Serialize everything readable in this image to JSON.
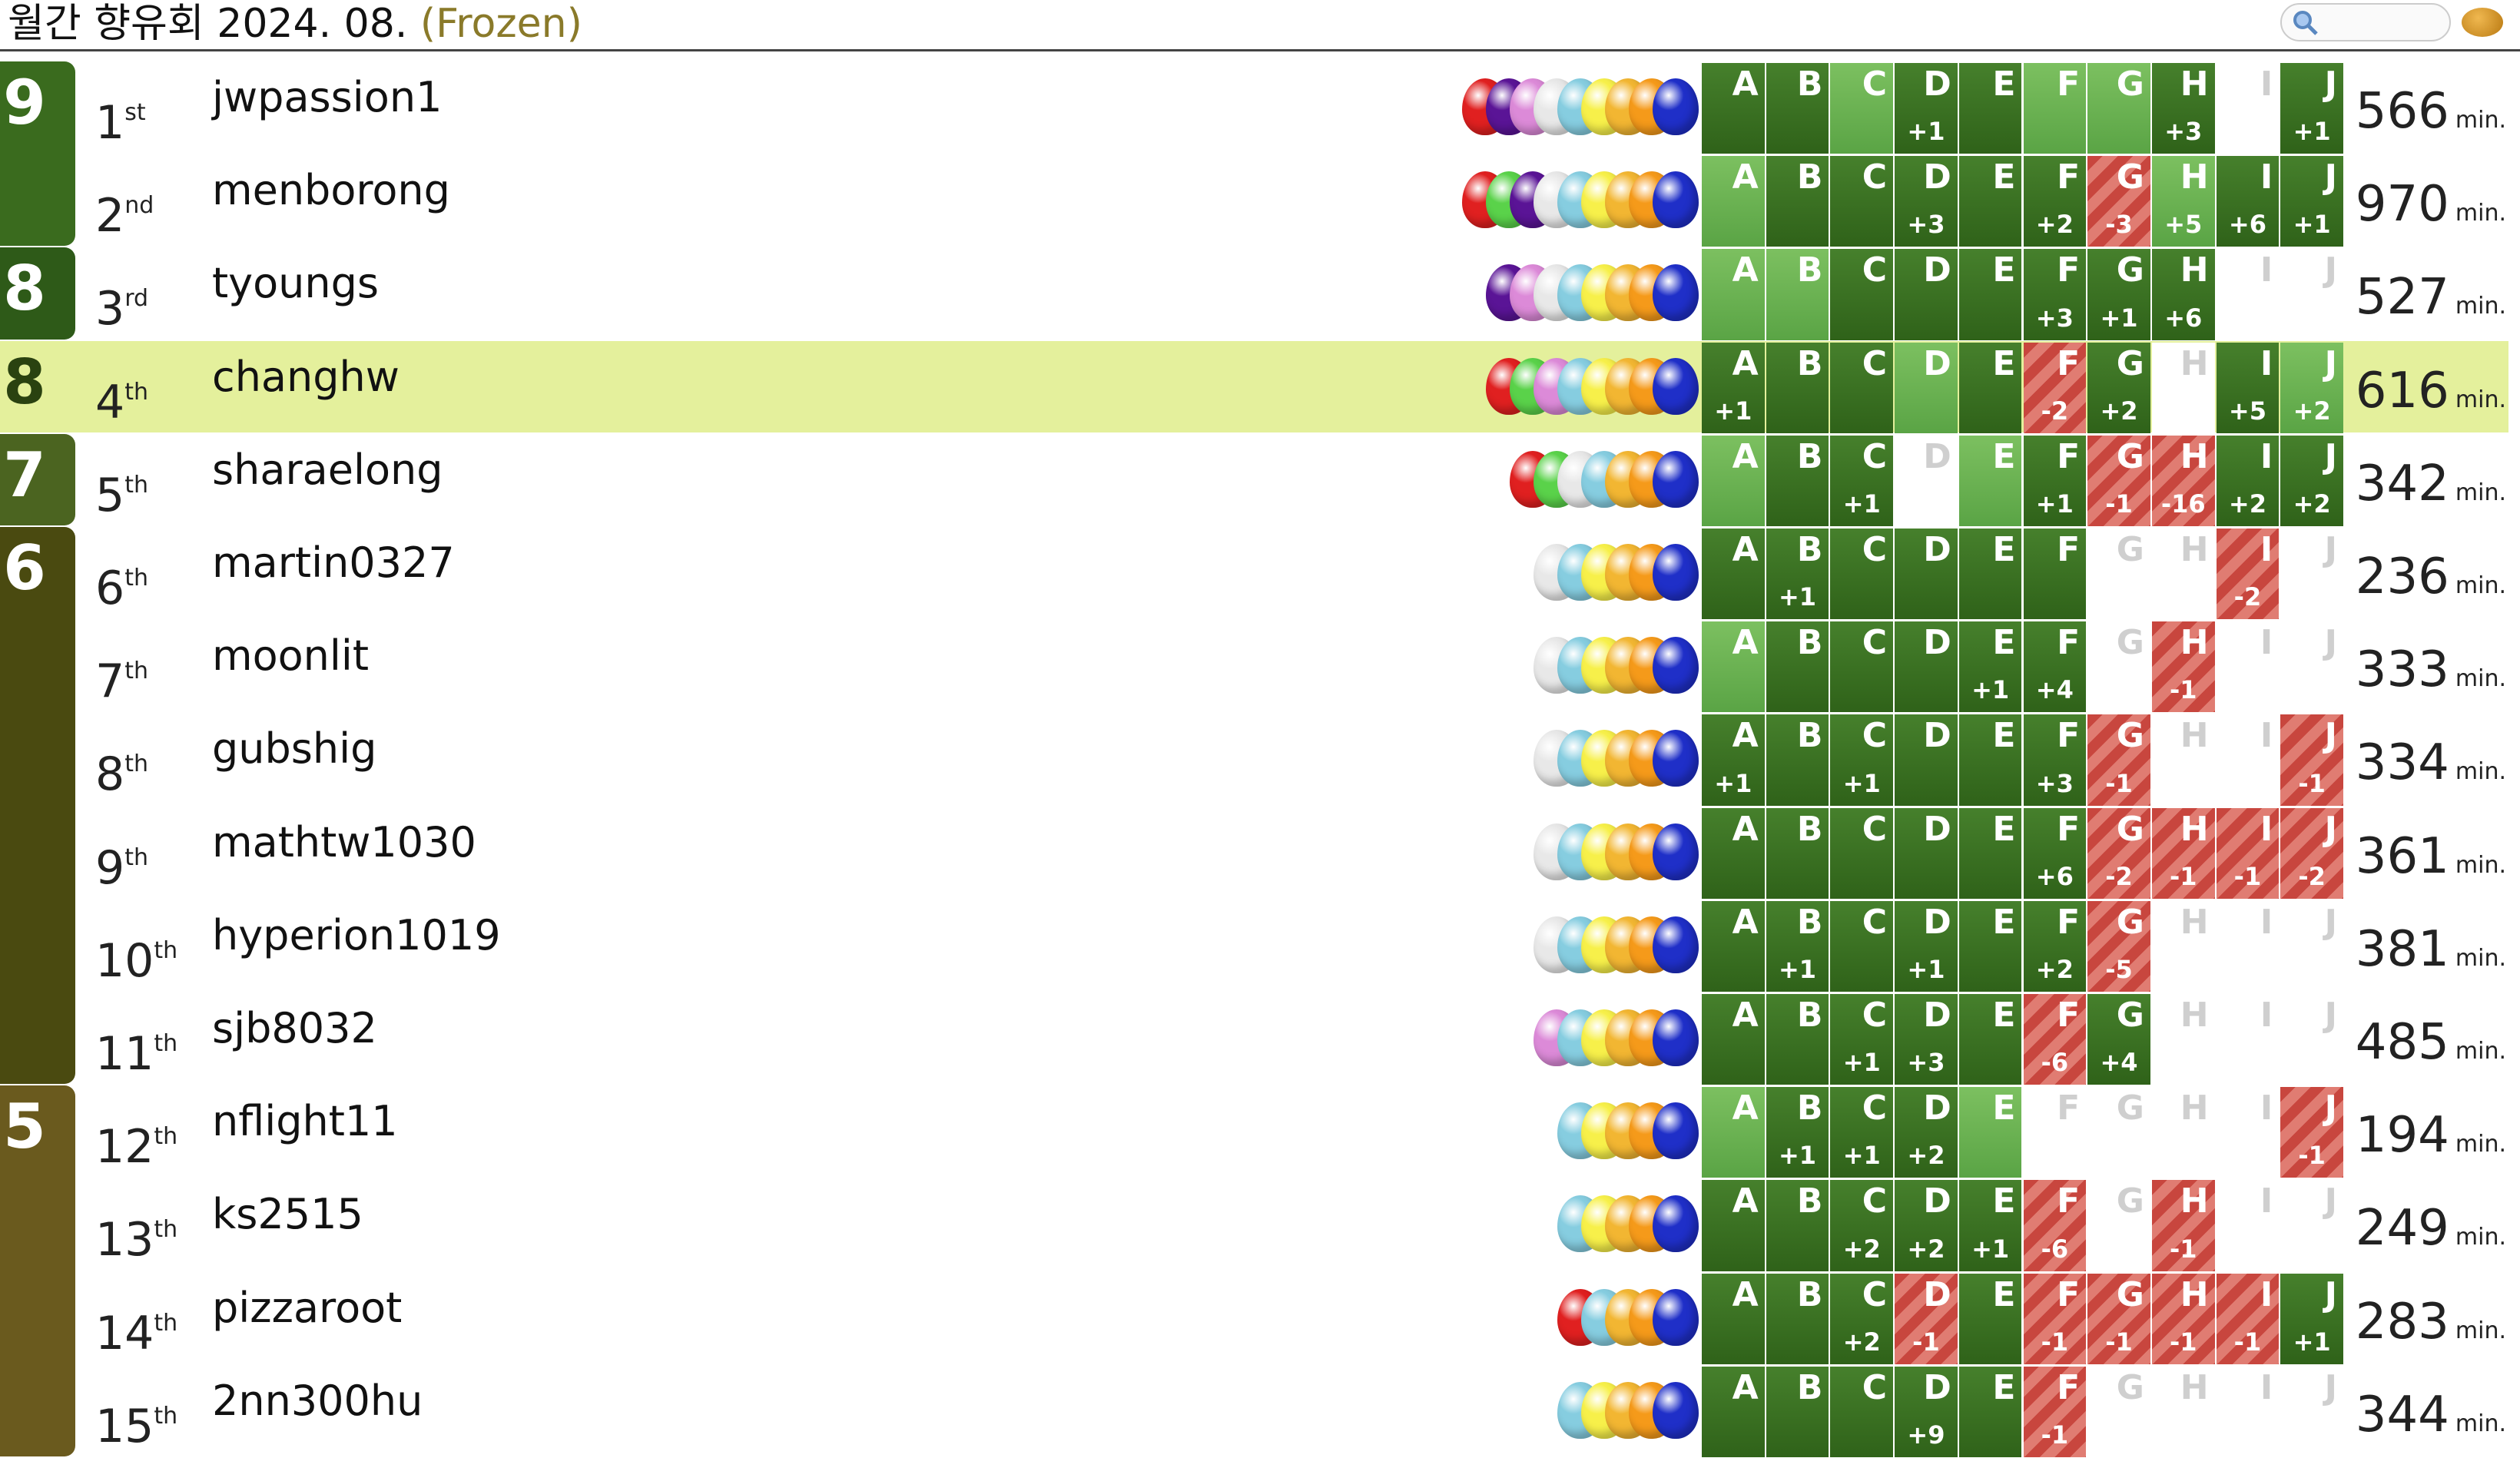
{
  "header": {
    "title": "월간 향유회 2024. 08.",
    "status": "(Frozen)"
  },
  "problems": [
    {
      "letter": "A",
      "balloon": "#1f2fc8"
    },
    {
      "letter": "B",
      "balloon": "#f59a1a"
    },
    {
      "letter": "C",
      "balloon": "#f2b632"
    },
    {
      "letter": "D",
      "balloon": "#f7f04a"
    },
    {
      "letter": "E",
      "balloon": "#86cde0"
    },
    {
      "letter": "F",
      "balloon": "#e8e8e8"
    },
    {
      "letter": "G",
      "balloon": "#dc8ad8"
    },
    {
      "letter": "H",
      "balloon": "#5a1496"
    },
    {
      "letter": "I",
      "balloon": "#5ad24a"
    },
    {
      "letter": "J",
      "balloon": "#e02020"
    }
  ],
  "groups": [
    {
      "solved": 9,
      "color": "#3a6b1e",
      "rows": [
        {
          "rank": "1",
          "suffix": "st",
          "name": "jwpassion1",
          "cells": [
            [
              "ok"
            ],
            [
              "ok"
            ],
            [
              "first"
            ],
            [
              "ok",
              "+1"
            ],
            [
              "ok"
            ],
            [
              "first"
            ],
            [
              "first"
            ],
            [
              "ok",
              "+3"
            ],
            [
              "none"
            ],
            [
              "ok",
              "+1"
            ]
          ],
          "penalty": "566",
          "unit": "min."
        },
        {
          "rank": "2",
          "suffix": "nd",
          "name": "menborong",
          "cells": [
            [
              "first"
            ],
            [
              "ok"
            ],
            [
              "ok"
            ],
            [
              "ok",
              "+3"
            ],
            [
              "ok"
            ],
            [
              "ok",
              "+2"
            ],
            [
              "fail",
              "-3"
            ],
            [
              "first",
              "+5"
            ],
            [
              "ok",
              "+6"
            ],
            [
              "ok",
              "+1"
            ]
          ],
          "penalty": "970",
          "unit": "min."
        }
      ]
    },
    {
      "solved": 8,
      "color": "#2e5a18",
      "rows": [
        {
          "rank": "3",
          "suffix": "rd",
          "name": "tyoungs",
          "cells": [
            [
              "first"
            ],
            [
              "first"
            ],
            [
              "ok"
            ],
            [
              "ok"
            ],
            [
              "ok"
            ],
            [
              "ok",
              "+3"
            ],
            [
              "ok",
              "+1"
            ],
            [
              "ok",
              "+6"
            ],
            [
              "none"
            ],
            [
              "none"
            ]
          ],
          "penalty": "527",
          "unit": "min."
        }
      ]
    },
    {
      "solved": 8,
      "color": "#2a4210",
      "highlight": true,
      "rows": [
        {
          "rank": "4",
          "suffix": "th",
          "name": "changhw",
          "cells": [
            [
              "ok",
              "+1"
            ],
            [
              "ok"
            ],
            [
              "ok"
            ],
            [
              "first"
            ],
            [
              "ok"
            ],
            [
              "fail",
              "-2"
            ],
            [
              "ok",
              "+2"
            ],
            [
              "none"
            ],
            [
              "ok",
              "+5"
            ],
            [
              "first",
              "+2"
            ]
          ],
          "penalty": "616",
          "unit": "min."
        }
      ]
    },
    {
      "solved": 7,
      "color": "#4b6420",
      "rows": [
        {
          "rank": "5",
          "suffix": "th",
          "name": "sharaelong",
          "cells": [
            [
              "first"
            ],
            [
              "ok"
            ],
            [
              "ok",
              "+1"
            ],
            [
              "none"
            ],
            [
              "first"
            ],
            [
              "ok",
              "+1"
            ],
            [
              "fail",
              "-1"
            ],
            [
              "fail",
              "-16"
            ],
            [
              "ok",
              "+2"
            ],
            [
              "ok",
              "+2"
            ]
          ],
          "penalty": "342",
          "unit": "min."
        }
      ]
    },
    {
      "solved": 6,
      "color": "#4a4a10",
      "rows": [
        {
          "rank": "6",
          "suffix": "th",
          "name": "martin0327",
          "cells": [
            [
              "ok"
            ],
            [
              "ok",
              "+1"
            ],
            [
              "ok"
            ],
            [
              "ok"
            ],
            [
              "ok"
            ],
            [
              "ok"
            ],
            [
              "none"
            ],
            [
              "none"
            ],
            [
              "fail",
              "-2"
            ],
            [
              "none"
            ]
          ],
          "penalty": "236",
          "unit": "min."
        },
        {
          "rank": "7",
          "suffix": "th",
          "name": "moonlit",
          "cells": [
            [
              "first"
            ],
            [
              "ok"
            ],
            [
              "ok"
            ],
            [
              "ok"
            ],
            [
              "ok",
              "+1"
            ],
            [
              "ok",
              "+4"
            ],
            [
              "none"
            ],
            [
              "fail",
              "-1"
            ],
            [
              "none"
            ],
            [
              "none"
            ]
          ],
          "penalty": "333",
          "unit": "min."
        },
        {
          "rank": "8",
          "suffix": "th",
          "name": "gubshig",
          "cells": [
            [
              "ok",
              "+1"
            ],
            [
              "ok"
            ],
            [
              "ok",
              "+1"
            ],
            [
              "ok"
            ],
            [
              "ok"
            ],
            [
              "ok",
              "+3"
            ],
            [
              "fail",
              "-1"
            ],
            [
              "none"
            ],
            [
              "none"
            ],
            [
              "fail",
              "-1"
            ]
          ],
          "penalty": "334",
          "unit": "min."
        },
        {
          "rank": "9",
          "suffix": "th",
          "name": "mathtw1030",
          "cells": [
            [
              "ok"
            ],
            [
              "ok"
            ],
            [
              "ok"
            ],
            [
              "ok"
            ],
            [
              "ok"
            ],
            [
              "ok",
              "+6"
            ],
            [
              "fail",
              "-2"
            ],
            [
              "fail",
              "-1"
            ],
            [
              "fail",
              "-1"
            ],
            [
              "fail",
              "-2"
            ]
          ],
          "penalty": "361",
          "unit": "min."
        },
        {
          "rank": "10",
          "suffix": "th",
          "name": "hyperion1019",
          "cells": [
            [
              "ok"
            ],
            [
              "ok",
              "+1"
            ],
            [
              "ok"
            ],
            [
              "ok",
              "+1"
            ],
            [
              "ok"
            ],
            [
              "ok",
              "+2"
            ],
            [
              "fail",
              "-5"
            ],
            [
              "none"
            ],
            [
              "none"
            ],
            [
              "none"
            ]
          ],
          "penalty": "381",
          "unit": "min."
        },
        {
          "rank": "11",
          "suffix": "th",
          "name": "sjb8032",
          "cells": [
            [
              "ok"
            ],
            [
              "ok"
            ],
            [
              "ok",
              "+1"
            ],
            [
              "ok",
              "+3"
            ],
            [
              "ok"
            ],
            [
              "fail",
              "-6"
            ],
            [
              "ok",
              "+4"
            ],
            [
              "none"
            ],
            [
              "none"
            ],
            [
              "none"
            ]
          ],
          "penalty": "485",
          "unit": "min."
        }
      ]
    },
    {
      "solved": 5,
      "color": "#6a5a1e",
      "rows": [
        {
          "rank": "12",
          "suffix": "th",
          "name": "nflight11",
          "cells": [
            [
              "first"
            ],
            [
              "ok",
              "+1"
            ],
            [
              "ok",
              "+1"
            ],
            [
              "ok",
              "+2"
            ],
            [
              "first"
            ],
            [
              "none"
            ],
            [
              "none"
            ],
            [
              "none"
            ],
            [
              "none"
            ],
            [
              "fail",
              "-1"
            ]
          ],
          "penalty": "194",
          "unit": "min."
        },
        {
          "rank": "13",
          "suffix": "th",
          "name": "ks2515",
          "cells": [
            [
              "ok"
            ],
            [
              "ok"
            ],
            [
              "ok",
              "+2"
            ],
            [
              "ok",
              "+2"
            ],
            [
              "ok",
              "+1"
            ],
            [
              "fail",
              "-6"
            ],
            [
              "none"
            ],
            [
              "fail",
              "-1"
            ],
            [
              "none"
            ],
            [
              "none"
            ]
          ],
          "penalty": "249",
          "unit": "min."
        },
        {
          "rank": "14",
          "suffix": "th",
          "name": "pizzaroot",
          "cells": [
            [
              "ok"
            ],
            [
              "ok"
            ],
            [
              "ok",
              "+2"
            ],
            [
              "fail",
              "-1"
            ],
            [
              "ok"
            ],
            [
              "fail",
              "-1"
            ],
            [
              "fail",
              "-1"
            ],
            [
              "fail",
              "-1"
            ],
            [
              "fail",
              "-1"
            ],
            [
              "ok",
              "+1"
            ]
          ],
          "penalty": "283",
          "unit": "min."
        },
        {
          "rank": "15",
          "suffix": "th",
          "name": "2nn300hu",
          "cells": [
            [
              "ok"
            ],
            [
              "ok"
            ],
            [
              "ok"
            ],
            [
              "ok",
              "+9"
            ],
            [
              "ok"
            ],
            [
              "fail",
              "-1"
            ],
            [
              "none"
            ],
            [
              "none"
            ],
            [
              "none"
            ],
            [
              "none"
            ]
          ],
          "penalty": "344",
          "unit": "min."
        }
      ]
    }
  ]
}
